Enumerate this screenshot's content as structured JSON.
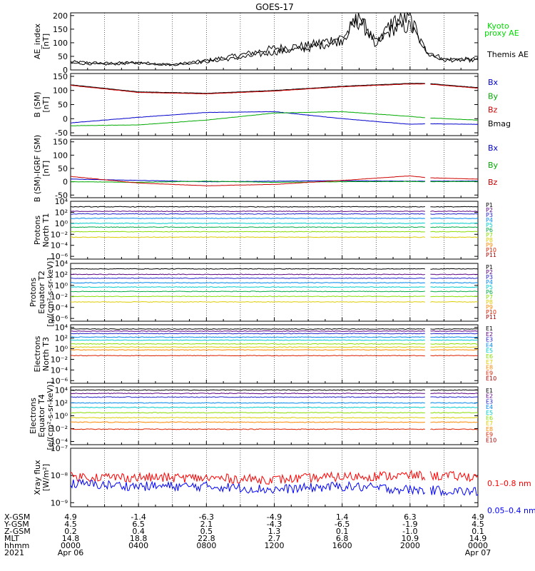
{
  "title": "GOES-17",
  "panels": [
    {
      "id": "ae",
      "ylabel": [
        "AE_index",
        "[nT]"
      ],
      "ticks": [
        "200",
        "150",
        "100",
        "50",
        "0"
      ],
      "tick_values": [
        200,
        150,
        100,
        50,
        0
      ],
      "ylim": [
        0,
        210
      ],
      "legend": [
        {
          "text": "Kyoto",
          "color": "#00dd00"
        },
        {
          "text": "proxy AE",
          "color": "#00dd00"
        },
        {
          "text": "Themis AE",
          "color": "#000000"
        }
      ]
    },
    {
      "id": "bsm",
      "ylabel": [
        "B (SM)",
        "[nT]"
      ],
      "ticks": [
        "150",
        "100",
        "50",
        "0",
        "-50"
      ],
      "tick_values": [
        150,
        100,
        50,
        0,
        -50
      ],
      "ylim": [
        -60,
        160
      ],
      "legend": [
        {
          "text": "Bx",
          "color": "#0000cc"
        },
        {
          "text": "By",
          "color": "#00aa00"
        },
        {
          "text": "Bz",
          "color": "#cc0000"
        },
        {
          "text": "Bmag",
          "color": "#000000"
        }
      ]
    },
    {
      "id": "bigrf",
      "ylabel": [
        "B (SM)-IGRF (SM)",
        "[nT]"
      ],
      "ticks": [
        "150",
        "100",
        "50",
        "0",
        "-50"
      ],
      "tick_values": [
        150,
        100,
        50,
        0,
        -50
      ],
      "ylim": [
        -60,
        160
      ],
      "legend": [
        {
          "text": "Bx",
          "color": "#0000cc"
        },
        {
          "text": "By",
          "color": "#00aa00"
        },
        {
          "text": "Bz",
          "color": "#cc0000"
        }
      ]
    },
    {
      "id": "pnt1",
      "ylabel": [
        "Protons",
        "North T1"
      ],
      "ticks": [
        "10⁴",
        "10²",
        "10⁰",
        "10⁻²",
        "10⁻⁴",
        "10⁻⁶"
      ],
      "tick_values": [
        4,
        2,
        0,
        -2,
        -4,
        -6
      ],
      "ylim": [
        -6.5,
        4
      ],
      "legend": [
        {
          "text": "P1",
          "color": "#000000"
        },
        {
          "text": "P2",
          "color": "#5a0080"
        },
        {
          "text": "P3",
          "color": "#2222cc"
        },
        {
          "text": "P4",
          "color": "#0088ee"
        },
        {
          "text": "P5",
          "color": "#00cccc"
        },
        {
          "text": "P6",
          "color": "#00aa44"
        },
        {
          "text": "P7",
          "color": "#88dd00"
        },
        {
          "text": "P8",
          "color": "#ddcc00"
        },
        {
          "text": "P9",
          "color": "#ff8800"
        },
        {
          "text": "P10",
          "color": "#dd2200"
        },
        {
          "text": "P11",
          "color": "#aa0000"
        }
      ]
    },
    {
      "id": "pet2",
      "ylabel": [
        "Protons",
        "Equator T2",
        "[p/(cm²-s-sr-keV)]"
      ],
      "ticks": [
        "10⁴",
        "10²",
        "10⁰",
        "10⁻²",
        "10⁻⁴",
        "10⁻⁶"
      ],
      "tick_values": [
        4,
        2,
        0,
        -2,
        -4,
        -6
      ],
      "ylim": [
        -6.5,
        4
      ],
      "legend": [
        {
          "text": "P1",
          "color": "#000000"
        },
        {
          "text": "P2",
          "color": "#5a0080"
        },
        {
          "text": "P3",
          "color": "#2222cc"
        },
        {
          "text": "P4",
          "color": "#0088ee"
        },
        {
          "text": "P5",
          "color": "#00cccc"
        },
        {
          "text": "P6",
          "color": "#00aa44"
        },
        {
          "text": "P7",
          "color": "#88dd00"
        },
        {
          "text": "P8",
          "color": "#ddcc00"
        },
        {
          "text": "P9",
          "color": "#ff8800"
        },
        {
          "text": "P10",
          "color": "#dd2200"
        },
        {
          "text": "P11",
          "color": "#aa0000"
        }
      ]
    },
    {
      "id": "ent3",
      "ylabel": [
        "Electrons",
        "North T3"
      ],
      "ticks": [
        "10⁴",
        "10²",
        "10⁰",
        "10⁻²",
        "10⁻⁴",
        "10⁻⁶"
      ],
      "tick_values": [
        4,
        2,
        0,
        -2,
        -4,
        -6
      ],
      "ylim": [
        -6.5,
        4.5
      ],
      "legend": [
        {
          "text": "E1",
          "color": "#000000"
        },
        {
          "text": "E2",
          "color": "#5a0080"
        },
        {
          "text": "E3",
          "color": "#2222cc"
        },
        {
          "text": "E4",
          "color": "#0088ee"
        },
        {
          "text": "E5",
          "color": "#00cccc"
        },
        {
          "text": "E6",
          "color": "#88dd00"
        },
        {
          "text": "E7",
          "color": "#ddcc00"
        },
        {
          "text": "E8",
          "color": "#ff8800"
        },
        {
          "text": "E9",
          "color": "#dd2200"
        },
        {
          "text": "E10",
          "color": "#aa0000"
        }
      ]
    },
    {
      "id": "eet4",
      "ylabel": [
        "Electrons",
        "Equator T4",
        "[e/(cm²-s-sr-keV)]"
      ],
      "ticks": [
        "10⁴",
        "10²",
        "10⁰",
        "10⁻²",
        "10⁻⁴"
      ],
      "tick_values": [
        4,
        2,
        0,
        -2,
        -4
      ],
      "ylim": [
        -4.5,
        4.5
      ],
      "legend": [
        {
          "text": "E1",
          "color": "#000000"
        },
        {
          "text": "E2",
          "color": "#5a0080"
        },
        {
          "text": "E3",
          "color": "#2222cc"
        },
        {
          "text": "E4",
          "color": "#0088ee"
        },
        {
          "text": "E5",
          "color": "#00cccc"
        },
        {
          "text": "E6",
          "color": "#88dd00"
        },
        {
          "text": "E7",
          "color": "#ddcc00"
        },
        {
          "text": "E8",
          "color": "#ff8800"
        },
        {
          "text": "E9",
          "color": "#dd2200"
        },
        {
          "text": "E10",
          "color": "#aa0000"
        }
      ]
    },
    {
      "id": "xray",
      "ylabel": [
        "Xray flux",
        "[W/m²]"
      ],
      "ticks": [
        "10⁻⁷",
        "10⁻⁸",
        "10⁻⁹"
      ],
      "tick_values": [
        -7,
        -8,
        -9
      ],
      "ylim": [
        -9.15,
        -7
      ],
      "legend": [
        {
          "text": "0.1–0.8 nm",
          "color": "#ff0000"
        },
        {
          "text": "0.05–0.4 nm",
          "color": "#0000ff"
        }
      ]
    }
  ],
  "xaxis": {
    "row_labels": [
      "X-GSM",
      "Y-GSM",
      "Z-GSM",
      "MLT",
      "hhmm",
      "2021"
    ],
    "columns": [
      {
        "values": [
          "4.9",
          "4.5",
          "0.2",
          "14.8",
          "0000",
          "Apr 06"
        ]
      },
      {
        "values": [
          "-1.4",
          "6.5",
          "0.4",
          "18.8",
          "0400",
          ""
        ]
      },
      {
        "values": [
          "-6.3",
          "2.1",
          "0.5",
          "22.8",
          "0800",
          ""
        ]
      },
      {
        "values": [
          "-4.9",
          "-4.3",
          "1.3",
          "2.7",
          "1200",
          ""
        ]
      },
      {
        "values": [
          "1.4",
          "-6.5",
          "0.1",
          "6.8",
          "1600",
          ""
        ]
      },
      {
        "values": [
          "6.3",
          "-1.9",
          "-1.0",
          "10.9",
          "2000",
          ""
        ]
      },
      {
        "values": [
          "4.9",
          "4.5",
          "0.1",
          "14.9",
          "0000",
          "Apr 07"
        ]
      }
    ]
  },
  "chart_data": [
    {
      "type": "line",
      "panel": "ae",
      "xlabel": "hhmm",
      "x": [
        0,
        2,
        4,
        6,
        8,
        10,
        12,
        14,
        16,
        17,
        18,
        19,
        20,
        21,
        22,
        24
      ],
      "series": [
        {
          "name": "Themis AE",
          "values": [
            30,
            25,
            28,
            20,
            35,
            55,
            80,
            90,
            120,
            180,
            100,
            150,
            160,
            70,
            40,
            40
          ]
        },
        {
          "name": "Kyoto proxy AE",
          "values": [
            25,
            20,
            25,
            18,
            30,
            45,
            65,
            80,
            110,
            200,
            95,
            180,
            190,
            60,
            35,
            35
          ]
        }
      ],
      "ylim": [
        0,
        210
      ]
    },
    {
      "type": "line",
      "panel": "bsm",
      "xlabel": "hhmm",
      "x": [
        0,
        4,
        8,
        12,
        16,
        20,
        21,
        24
      ],
      "series": [
        {
          "name": "Bmag",
          "values": [
            120,
            95,
            90,
            100,
            115,
            125,
            125,
            110
          ]
        },
        {
          "name": "Bz",
          "values": [
            118,
            93,
            88,
            98,
            113,
            123,
            123,
            108
          ]
        },
        {
          "name": "Bx",
          "values": [
            -15,
            5,
            22,
            25,
            0,
            -20,
            -18,
            -20
          ]
        },
        {
          "name": "By",
          "values": [
            -25,
            -22,
            -5,
            20,
            25,
            8,
            3,
            -5
          ]
        }
      ],
      "ylim": [
        -60,
        160
      ]
    },
    {
      "type": "line",
      "panel": "bigrf",
      "xlabel": "hhmm",
      "x": [
        0,
        4,
        8,
        12,
        16,
        20,
        21,
        24
      ],
      "series": [
        {
          "name": "Bx",
          "values": [
            10,
            5,
            0,
            2,
            4,
            2,
            2,
            3
          ]
        },
        {
          "name": "By",
          "values": [
            0,
            -2,
            2,
            -2,
            0,
            1,
            0,
            1
          ]
        },
        {
          "name": "Bz",
          "values": [
            20,
            -5,
            -15,
            -10,
            5,
            22,
            15,
            10
          ]
        }
      ],
      "ylim": [
        -60,
        160
      ]
    },
    {
      "type": "line",
      "panel": "pnt1",
      "xlabel": "hhmm",
      "log_scale": true,
      "x": [
        0,
        24
      ],
      "series": [
        {
          "name": "P1",
          "values": [
            1000,
            1000
          ]
        },
        {
          "name": "P2",
          "values": [
            150,
            150
          ]
        },
        {
          "name": "P3",
          "values": [
            50,
            50
          ]
        },
        {
          "name": "P4",
          "values": [
            8,
            8
          ]
        },
        {
          "name": "P5",
          "values": [
            1,
            1
          ]
        },
        {
          "name": "P6",
          "values": [
            0.2,
            0.2
          ]
        },
        {
          "name": "P7",
          "values": [
            0.03,
            0.03
          ]
        },
        {
          "name": "P8",
          "values": [
            0.003,
            0.003
          ]
        }
      ],
      "ylim": [
        3e-07,
        10000
      ]
    },
    {
      "type": "line",
      "panel": "pet2",
      "xlabel": "hhmm",
      "log_scale": true,
      "x": [
        0,
        24
      ],
      "series": [
        {
          "name": "P1",
          "values": [
            1000,
            1000
          ]
        },
        {
          "name": "P2",
          "values": [
            100,
            100
          ]
        },
        {
          "name": "P3",
          "values": [
            20,
            20
          ]
        },
        {
          "name": "P4",
          "values": [
            3,
            3
          ]
        },
        {
          "name": "P5",
          "values": [
            0.5,
            0.5
          ]
        },
        {
          "name": "P6",
          "values": [
            0.08,
            0.08
          ]
        },
        {
          "name": "P7",
          "values": [
            0.01,
            0.01
          ]
        },
        {
          "name": "P8",
          "values": [
            0.001,
            0.001
          ]
        }
      ],
      "ylim": [
        3e-07,
        10000
      ]
    },
    {
      "type": "line",
      "panel": "ent3",
      "xlabel": "hhmm",
      "log_scale": true,
      "x": [
        0,
        24
      ],
      "series": [
        {
          "name": "E1",
          "values": [
            5000,
            5000
          ]
        },
        {
          "name": "E2",
          "values": [
            2000,
            2000
          ]
        },
        {
          "name": "E3",
          "values": [
            700,
            700
          ]
        },
        {
          "name": "E4",
          "values": [
            150,
            150
          ]
        },
        {
          "name": "E5",
          "values": [
            40,
            40
          ]
        },
        {
          "name": "E6",
          "values": [
            8,
            8
          ]
        },
        {
          "name": "E7",
          "values": [
            2,
            2
          ]
        },
        {
          "name": "E8",
          "values": [
            0.6,
            0.6
          ]
        },
        {
          "name": "E9",
          "values": [
            0.05,
            0.05
          ]
        }
      ],
      "ylim": [
        3e-07,
        30000
      ]
    },
    {
      "type": "line",
      "panel": "eet4",
      "xlabel": "hhmm",
      "log_scale": true,
      "x": [
        0,
        24
      ],
      "series": [
        {
          "name": "E1",
          "values": [
            10000,
            10000
          ]
        },
        {
          "name": "E2",
          "values": [
            3000,
            3000
          ]
        },
        {
          "name": "E3",
          "values": [
            800,
            800
          ]
        },
        {
          "name": "E4",
          "values": [
            100,
            100
          ]
        },
        {
          "name": "E5",
          "values": [
            20,
            20
          ]
        },
        {
          "name": "E6",
          "values": [
            3,
            3
          ]
        },
        {
          "name": "E7",
          "values": [
            0.5,
            0.5
          ]
        },
        {
          "name": "E8",
          "values": [
            0.1,
            0.1
          ]
        },
        {
          "name": "E9",
          "values": [
            0.008,
            0.008
          ]
        }
      ],
      "ylim": [
        3e-05,
        30000
      ]
    },
    {
      "type": "line",
      "panel": "xray",
      "xlabel": "hhmm",
      "log_scale": true,
      "x": [
        0,
        4,
        8,
        12,
        16,
        20,
        24
      ],
      "series": [
        {
          "name": "0.1–0.8 nm",
          "values": [
            9e-09,
            8.5e-09,
            8e-09,
            7e-09,
            9e-09,
            1e-08,
            9e-09
          ]
        },
        {
          "name": "0.05–0.4 nm",
          "values": [
            5e-09,
            4e-09,
            4e-09,
            3e-09,
            4e-09,
            3e-09,
            2.5e-09
          ]
        }
      ],
      "ylim": [
        7e-10,
        1e-07
      ]
    }
  ]
}
